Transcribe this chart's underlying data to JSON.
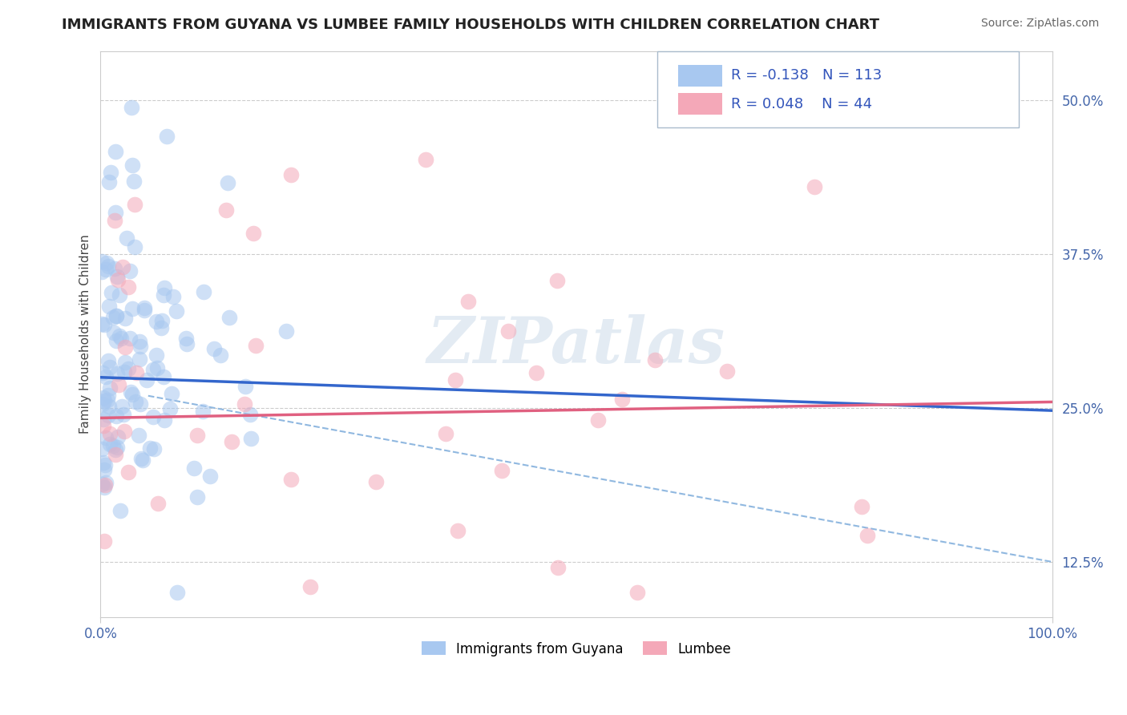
{
  "title": "IMMIGRANTS FROM GUYANA VS LUMBEE FAMILY HOUSEHOLDS WITH CHILDREN CORRELATION CHART",
  "source": "Source: ZipAtlas.com",
  "ylabel": "Family Households with Children",
  "x_min": 0.0,
  "x_max": 100.0,
  "y_min": 8.0,
  "y_max": 54.0,
  "y_ticks": [
    12.5,
    25.0,
    37.5,
    50.0
  ],
  "x_ticks": [
    0.0,
    100.0
  ],
  "blue_R": -0.138,
  "blue_N": 113,
  "pink_R": 0.048,
  "pink_N": 44,
  "blue_color": "#A8C8F0",
  "pink_color": "#F4A8B8",
  "blue_line_color": "#3366CC",
  "pink_line_color": "#E06080",
  "blue_dash_color": "#90B8E0",
  "watermark": "ZIPatlas",
  "legend_label_blue": "Immigrants from Guyana",
  "legend_label_pink": "Lumbee",
  "figsize": [
    14.06,
    8.92
  ],
  "dpi": 100,
  "blue_line_x0": 0,
  "blue_line_y0": 27.5,
  "blue_line_x1": 100,
  "blue_line_y1": 24.8,
  "blue_dash_x0": 5,
  "blue_dash_y0": 26.0,
  "blue_dash_x1": 100,
  "blue_dash_y1": 12.5,
  "pink_line_x0": 0,
  "pink_line_y0": 24.2,
  "pink_line_x1": 100,
  "pink_line_y1": 25.5
}
